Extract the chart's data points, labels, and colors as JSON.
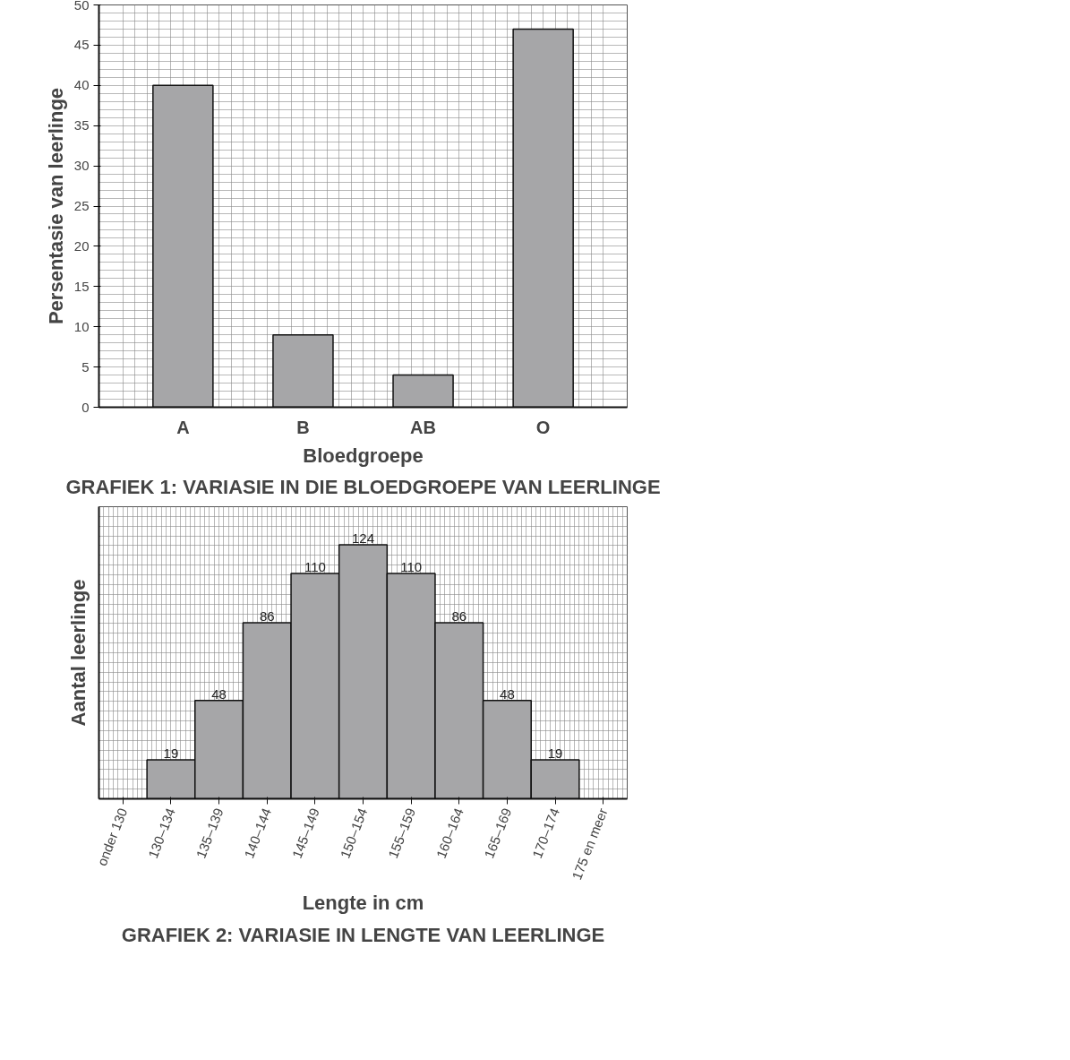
{
  "chart_data": [
    {
      "type": "bar",
      "title": "GRAFIEK 1: VARIASIE IN DIE BLOEDGROEPE VAN LEERLINGE",
      "xlabel": "Bloedgroepe",
      "ylabel": "Persentasie van leerlinge",
      "categories": [
        "A",
        "B",
        "AB",
        "O"
      ],
      "values": [
        40,
        9,
        4,
        47
      ],
      "color": "#a6a6a8",
      "ylim": [
        0,
        50
      ],
      "yticks": [
        0,
        5,
        10,
        15,
        20,
        25,
        30,
        35,
        40,
        45,
        50
      ],
      "grid": true
    },
    {
      "type": "bar",
      "title": "GRAFIEK 2: VARIASIE IN LENGTE VAN LEERLINGE",
      "xlabel": "Lengte in cm",
      "ylabel": "Aantal leerlinge",
      "categories": [
        "onder 130",
        "130–134",
        "135–139",
        "140–144",
        "145–149",
        "150–154",
        "155–159",
        "160–164",
        "165–169",
        "170–174",
        "175 en meer"
      ],
      "values": [
        null,
        19,
        48,
        86,
        110,
        124,
        110,
        86,
        48,
        19,
        null
      ],
      "color": "#a6a6a8",
      "data_labels": true,
      "tick_labels": "x",
      "grid": true
    }
  ]
}
